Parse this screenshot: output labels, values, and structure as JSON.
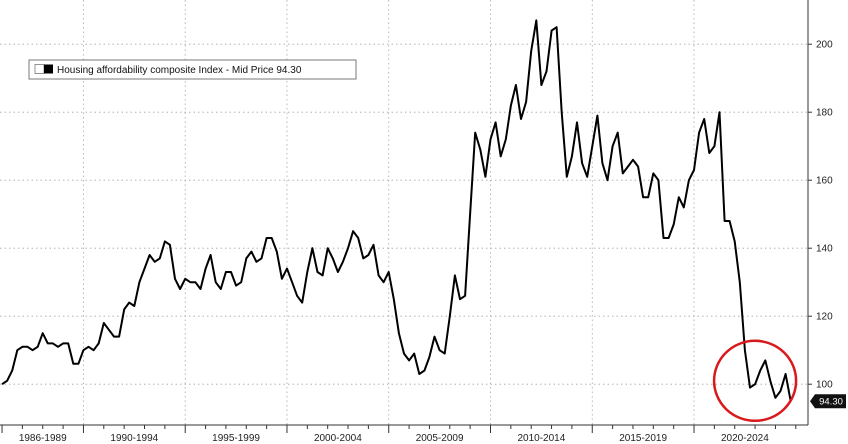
{
  "chart_data": {
    "type": "line",
    "legend": {
      "label": "Housing affordability composite Index - Mid Price 94.30",
      "placement": "top-left"
    },
    "last_value_label": "94.30",
    "y_ticks": [
      100,
      120,
      140,
      160,
      180,
      200
    ],
    "ylim": [
      88,
      213
    ],
    "x_period_labels": [
      "1986-1989",
      "1990-1994",
      "1995-1999",
      "2000-2004",
      "2005-2009",
      "2010-2014",
      "2015-2019",
      "2020-2024"
    ],
    "xlim": [
      1985.9,
      2025.6
    ],
    "grid": true,
    "highlight_circle": {
      "center": [
        2023.0,
        101
      ],
      "color": "#d9191c"
    },
    "series": [
      {
        "color": "#000000",
        "points": [
          [
            1986.0,
            100
          ],
          [
            1986.25,
            101
          ],
          [
            1986.5,
            104
          ],
          [
            1986.75,
            110
          ],
          [
            1987.0,
            111
          ],
          [
            1987.25,
            111
          ],
          [
            1987.5,
            110
          ],
          [
            1987.75,
            111
          ],
          [
            1988.0,
            115
          ],
          [
            1988.25,
            112
          ],
          [
            1988.5,
            112
          ],
          [
            1988.75,
            111
          ],
          [
            1989.0,
            112
          ],
          [
            1989.25,
            112
          ],
          [
            1989.5,
            106
          ],
          [
            1989.75,
            106
          ],
          [
            1990.0,
            110
          ],
          [
            1990.25,
            111
          ],
          [
            1990.5,
            110
          ],
          [
            1990.75,
            112
          ],
          [
            1991.0,
            118
          ],
          [
            1991.25,
            116
          ],
          [
            1991.5,
            114
          ],
          [
            1991.75,
            114
          ],
          [
            1992.0,
            122
          ],
          [
            1992.25,
            124
          ],
          [
            1992.5,
            123
          ],
          [
            1992.75,
            130
          ],
          [
            1993.0,
            134
          ],
          [
            1993.25,
            138
          ],
          [
            1993.5,
            136
          ],
          [
            1993.75,
            137
          ],
          [
            1994.0,
            142
          ],
          [
            1994.25,
            141
          ],
          [
            1994.5,
            131
          ],
          [
            1994.75,
            128
          ],
          [
            1995.0,
            131
          ],
          [
            1995.25,
            130
          ],
          [
            1995.5,
            130
          ],
          [
            1995.75,
            128
          ],
          [
            1996.0,
            134
          ],
          [
            1996.25,
            138
          ],
          [
            1996.5,
            130
          ],
          [
            1996.75,
            128
          ],
          [
            1997.0,
            133
          ],
          [
            1997.25,
            133
          ],
          [
            1997.5,
            129
          ],
          [
            1997.75,
            130
          ],
          [
            1998.0,
            137
          ],
          [
            1998.25,
            139
          ],
          [
            1998.5,
            136
          ],
          [
            1998.75,
            137
          ],
          [
            1999.0,
            143
          ],
          [
            1999.25,
            143
          ],
          [
            1999.5,
            139
          ],
          [
            1999.75,
            131
          ],
          [
            2000.0,
            134
          ],
          [
            2000.25,
            130
          ],
          [
            2000.5,
            126
          ],
          [
            2000.75,
            124
          ],
          [
            2001.0,
            133
          ],
          [
            2001.25,
            140
          ],
          [
            2001.5,
            133
          ],
          [
            2001.75,
            132
          ],
          [
            2002.0,
            140
          ],
          [
            2002.25,
            137
          ],
          [
            2002.5,
            133
          ],
          [
            2002.75,
            136
          ],
          [
            2003.0,
            140
          ],
          [
            2003.25,
            145
          ],
          [
            2003.5,
            143
          ],
          [
            2003.75,
            137
          ],
          [
            2004.0,
            138
          ],
          [
            2004.25,
            141
          ],
          [
            2004.5,
            132
          ],
          [
            2004.75,
            130
          ],
          [
            2005.0,
            133
          ],
          [
            2005.25,
            125
          ],
          [
            2005.5,
            115
          ],
          [
            2005.75,
            109
          ],
          [
            2006.0,
            107
          ],
          [
            2006.25,
            109
          ],
          [
            2006.5,
            103
          ],
          [
            2006.75,
            104
          ],
          [
            2007.0,
            108
          ],
          [
            2007.25,
            114
          ],
          [
            2007.5,
            110
          ],
          [
            2007.75,
            109
          ],
          [
            2008.0,
            120
          ],
          [
            2008.25,
            132
          ],
          [
            2008.5,
            125
          ],
          [
            2008.75,
            126
          ],
          [
            2009.0,
            150
          ],
          [
            2009.25,
            174
          ],
          [
            2009.5,
            169
          ],
          [
            2009.75,
            161
          ],
          [
            2010.0,
            172
          ],
          [
            2010.25,
            177
          ],
          [
            2010.5,
            167
          ],
          [
            2010.75,
            172
          ],
          [
            2011.0,
            182
          ],
          [
            2011.25,
            188
          ],
          [
            2011.5,
            178
          ],
          [
            2011.75,
            183
          ],
          [
            2012.0,
            198
          ],
          [
            2012.25,
            207
          ],
          [
            2012.5,
            188
          ],
          [
            2012.75,
            192
          ],
          [
            2013.0,
            204
          ],
          [
            2013.25,
            205
          ],
          [
            2013.5,
            180
          ],
          [
            2013.75,
            161
          ],
          [
            2014.0,
            167
          ],
          [
            2014.25,
            177
          ],
          [
            2014.5,
            165
          ],
          [
            2014.75,
            161
          ],
          [
            2015.0,
            170
          ],
          [
            2015.25,
            179
          ],
          [
            2015.5,
            165
          ],
          [
            2015.75,
            160
          ],
          [
            2016.0,
            170
          ],
          [
            2016.25,
            174
          ],
          [
            2016.5,
            162
          ],
          [
            2016.75,
            164
          ],
          [
            2017.0,
            166
          ],
          [
            2017.25,
            164
          ],
          [
            2017.5,
            155
          ],
          [
            2017.75,
            155
          ],
          [
            2018.0,
            162
          ],
          [
            2018.25,
            160
          ],
          [
            2018.5,
            143
          ],
          [
            2018.75,
            143
          ],
          [
            2019.0,
            147
          ],
          [
            2019.25,
            155
          ],
          [
            2019.5,
            152
          ],
          [
            2019.75,
            160
          ],
          [
            2020.0,
            163
          ],
          [
            2020.25,
            174
          ],
          [
            2020.5,
            178
          ],
          [
            2020.75,
            168
          ],
          [
            2021.0,
            170
          ],
          [
            2021.25,
            180
          ],
          [
            2021.5,
            148
          ],
          [
            2021.75,
            148
          ],
          [
            2022.0,
            142
          ],
          [
            2022.25,
            130
          ],
          [
            2022.5,
            110
          ],
          [
            2022.75,
            99
          ],
          [
            2023.0,
            100
          ],
          [
            2023.25,
            104
          ],
          [
            2023.5,
            107
          ],
          [
            2023.75,
            101
          ],
          [
            2024.0,
            96
          ],
          [
            2024.25,
            98
          ],
          [
            2024.5,
            103
          ],
          [
            2024.75,
            95
          ]
        ]
      }
    ]
  }
}
